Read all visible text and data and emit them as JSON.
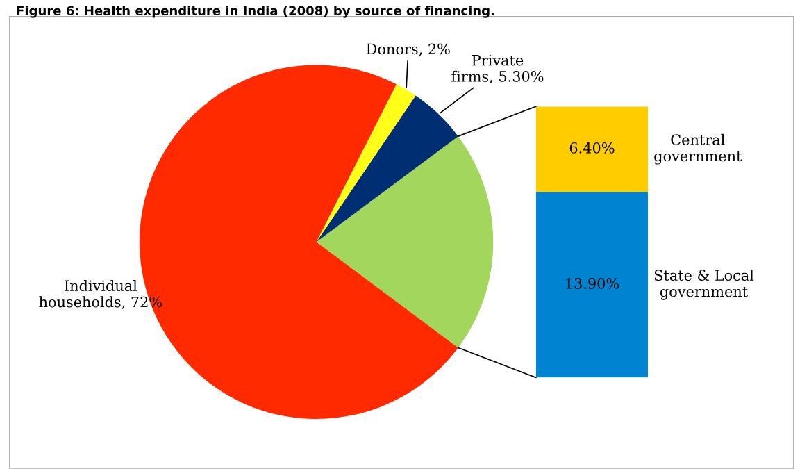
{
  "chart_data": [
    {
      "type": "pie",
      "title": "Figure 6: Health expenditure in India (2008) by source of financing.",
      "categories": [
        null,
        "Private firms",
        "Donors",
        "Individual households"
      ],
      "values": [
        20.3,
        5.3,
        2,
        72
      ],
      "value_labels": [
        null,
        "5.30%",
        "2%",
        "72%"
      ],
      "colors": [
        "#a3d65c",
        "#002e73",
        "#ffff1a",
        "#ff2a00"
      ]
    },
    {
      "type": "bar",
      "stacked": true,
      "categories": [
        null
      ],
      "series": [
        {
          "name": "State & Local government",
          "color": "#0084d1",
          "values": [
            13.9
          ],
          "value_labels": [
            "13.90%"
          ]
        },
        {
          "name": "Central government",
          "color": "#ffcc00",
          "values": [
            6.4
          ],
          "value_labels": [
            "6.40%"
          ]
        }
      ]
    }
  ]
}
